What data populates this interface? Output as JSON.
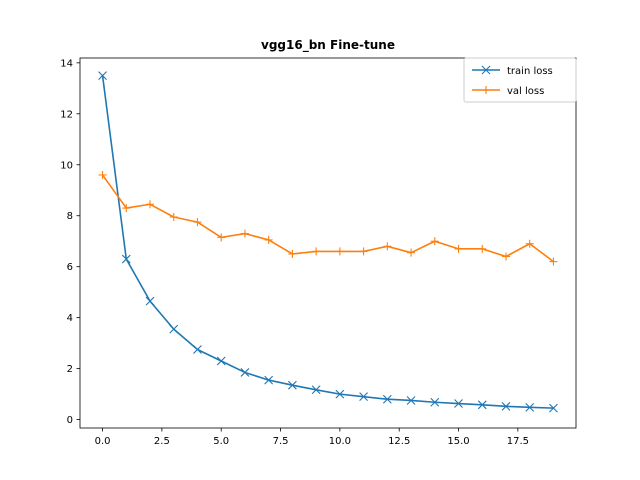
{
  "chart_data": {
    "type": "line",
    "title": "vgg16_bn Fine-tune",
    "xlabel": "",
    "ylabel": "",
    "xlim": [
      -0.95,
      19.95
    ],
    "ylim": [
      -0.33,
      14.19
    ],
    "x_ticks": [
      0.0,
      2.5,
      5.0,
      7.5,
      10.0,
      12.5,
      15.0,
      17.5
    ],
    "x_tick_labels": [
      "0.0",
      "2.5",
      "5.0",
      "7.5",
      "10.0",
      "12.5",
      "15.0",
      "17.5"
    ],
    "y_ticks": [
      0,
      2,
      4,
      6,
      8,
      10,
      12,
      14
    ],
    "y_tick_labels": [
      "0",
      "2",
      "4",
      "6",
      "8",
      "10",
      "12",
      "14"
    ],
    "grid": false,
    "legend_position": "top-right",
    "x": [
      0,
      1,
      2,
      3,
      4,
      5,
      6,
      7,
      8,
      9,
      10,
      11,
      12,
      13,
      14,
      15,
      16,
      17,
      18,
      19
    ],
    "series": [
      {
        "name": "train loss",
        "color": "#1f77b4",
        "marker": "x",
        "values": [
          13.5,
          6.3,
          4.65,
          3.55,
          2.75,
          2.3,
          1.85,
          1.55,
          1.35,
          1.17,
          1.0,
          0.9,
          0.8,
          0.75,
          0.68,
          0.63,
          0.58,
          0.52,
          0.48,
          0.45
        ]
      },
      {
        "name": "val loss",
        "color": "#ff7f0e",
        "marker": "+",
        "values": [
          9.6,
          8.3,
          8.45,
          7.95,
          7.75,
          7.15,
          7.3,
          7.05,
          6.5,
          6.6,
          6.6,
          6.6,
          6.8,
          6.55,
          7.0,
          6.7,
          6.7,
          6.4,
          6.9,
          6.2
        ]
      }
    ]
  }
}
